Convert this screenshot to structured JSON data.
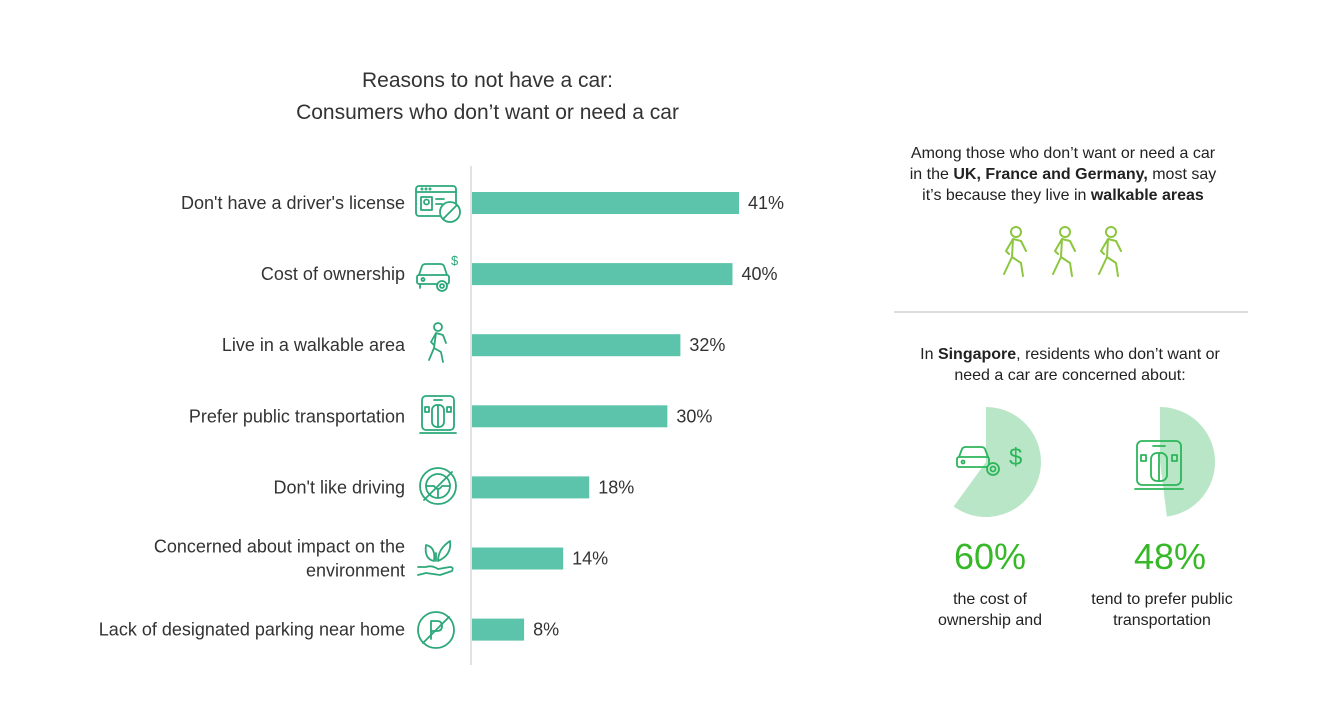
{
  "title_line1": "Reasons to not have a car:",
  "title_line2": "Consumers who don’t want or need a car",
  "chart_data": {
    "type": "bar",
    "orientation": "horizontal",
    "title": "Reasons to not have a car: Consumers who don’t want or need a car",
    "categories": [
      "Don't have a driver's license",
      "Cost of ownership",
      "Live in a walkable area",
      "Prefer public transportation",
      "Don't like driving",
      "Concerned about impact on the environment",
      "Lack of designated parking near home"
    ],
    "category_lines": [
      [
        "Don't have a driver's license"
      ],
      [
        "Cost of ownership"
      ],
      [
        "Live in a walkable area"
      ],
      [
        "Prefer public transportation"
      ],
      [
        "Don't like driving"
      ],
      [
        "Concerned about impact on the",
        "environment"
      ],
      [
        "Lack of designated parking near home"
      ]
    ],
    "values": [
      41,
      40,
      32,
      30,
      18,
      14,
      8
    ],
    "value_labels": [
      "41%",
      "40%",
      "32%",
      "30%",
      "18%",
      "14%",
      "8%"
    ],
    "icons": [
      "license-icon",
      "car-cost-icon",
      "walking-icon",
      "train-icon",
      "no-steering-icon",
      "leaf-hand-icon",
      "no-parking-icon"
    ],
    "bar_color": "#5cc4aa",
    "grid": false
  },
  "panel": {
    "top_text_plain1": "Among those who don’t want or need a car",
    "top_text_plain2": "in the ",
    "top_text_bold1": "UK, France and Germany,",
    "top_text_plain3": " most say",
    "top_text_plain4": "it’s because they live in ",
    "top_text_bold2": "walkable areas",
    "bottom_text_plain1": "In ",
    "bottom_text_bold": "Singapore",
    "bottom_text_plain2": ", residents who don’t want or",
    "bottom_text_plain3": "need a car are concerned about:",
    "stat1_value": "60%",
    "stat1_fraction": 0.6,
    "stat1_line1": "the cost of",
    "stat1_line2": "ownership and",
    "stat2_value": "48%",
    "stat2_fraction": 0.48,
    "stat2_line1": "tend to prefer public",
    "stat2_line2": "transportation",
    "accent_green": "#36b828",
    "pie_color": "#b9e6c6",
    "walker_color": "#8dc63f"
  }
}
